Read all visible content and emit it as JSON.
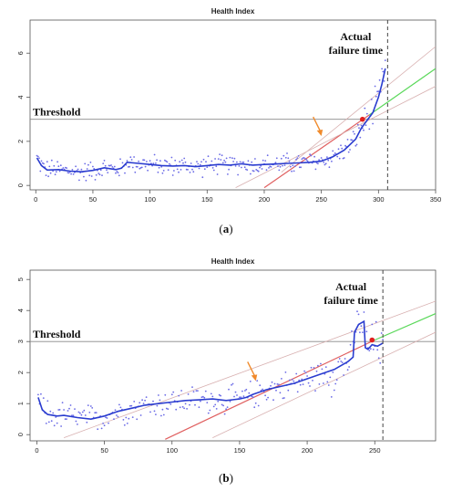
{
  "chart_data": [
    {
      "type": "scatter",
      "panel": "a",
      "caption_letter": "a",
      "title": "Health Index",
      "xlabel": "",
      "ylabel": "",
      "xlim": [
        -5,
        350
      ],
      "ylim": [
        -0.2,
        7.5
      ],
      "x_ticks": [
        0,
        50,
        100,
        150,
        200,
        250,
        300,
        350
      ],
      "y_ticks": [
        0,
        2,
        4,
        6
      ],
      "threshold": {
        "value": 3,
        "label": "Threshold"
      },
      "failure_time": {
        "x": 308,
        "label_line1": "Actual",
        "label_line2": "failure time"
      },
      "prediction_point": {
        "x": 286,
        "y": 3.0
      },
      "series": [
        {
          "role": "smoothed",
          "color": "#2a3ccf",
          "points": [
            [
              1,
              1.25
            ],
            [
              5,
              0.9
            ],
            [
              10,
              0.7
            ],
            [
              20,
              0.72
            ],
            [
              30,
              0.65
            ],
            [
              40,
              0.62
            ],
            [
              50,
              0.68
            ],
            [
              60,
              0.8
            ],
            [
              70,
              0.72
            ],
            [
              75,
              0.78
            ],
            [
              80,
              1.05
            ],
            [
              90,
              1.0
            ],
            [
              100,
              0.95
            ],
            [
              110,
              0.9
            ],
            [
              120,
              0.88
            ],
            [
              130,
              0.9
            ],
            [
              140,
              0.85
            ],
            [
              150,
              0.9
            ],
            [
              160,
              0.95
            ],
            [
              170,
              0.92
            ],
            [
              180,
              0.98
            ],
            [
              190,
              0.92
            ],
            [
              200,
              0.95
            ],
            [
              210,
              0.97
            ],
            [
              220,
              1.0
            ],
            [
              230,
              1.02
            ],
            [
              240,
              1.05
            ],
            [
              250,
              1.1
            ],
            [
              260,
              1.3
            ],
            [
              270,
              1.6
            ],
            [
              280,
              2.1
            ],
            [
              285,
              2.6
            ],
            [
              290,
              2.95
            ],
            [
              295,
              3.3
            ],
            [
              300,
              4.0
            ],
            [
              303,
              4.6
            ],
            [
              306,
              5.3
            ]
          ]
        },
        {
          "role": "regression",
          "color": "#e06060",
          "points": [
            [
              200,
              -0.1
            ],
            [
              292,
              3.2
            ]
          ]
        },
        {
          "role": "extrapolation",
          "color": "#5ad85a",
          "points": [
            [
              292,
              3.2
            ],
            [
              350,
              5.3
            ]
          ]
        },
        {
          "role": "upper-bound",
          "color": "#d8b0b0",
          "points": [
            [
              215,
              0.6
            ],
            [
              350,
              6.3
            ]
          ]
        },
        {
          "role": "lower-bound",
          "color": "#d8b0b0",
          "points": [
            [
              175,
              -0.1
            ],
            [
              350,
              4.5
            ]
          ]
        }
      ]
    },
    {
      "type": "scatter",
      "panel": "b",
      "caption_letter": "b",
      "title": "Health Index",
      "xlabel": "",
      "ylabel": "",
      "xlim": [
        -5,
        295
      ],
      "ylim": [
        -0.2,
        5.3
      ],
      "x_ticks": [
        0,
        50,
        100,
        150,
        200,
        250
      ],
      "y_ticks": [
        0,
        1,
        2,
        3,
        4,
        5
      ],
      "threshold": {
        "value": 3,
        "label": "Threshold"
      },
      "failure_time": {
        "x": 256,
        "label_line1": "Actual",
        "label_line2": "failure time"
      },
      "prediction_point": {
        "x": 248,
        "y": 3.05
      },
      "series": [
        {
          "role": "smoothed",
          "color": "#2a3ccf",
          "points": [
            [
              1,
              1.2
            ],
            [
              4,
              0.8
            ],
            [
              8,
              0.65
            ],
            [
              15,
              0.6
            ],
            [
              20,
              0.62
            ],
            [
              30,
              0.55
            ],
            [
              40,
              0.5
            ],
            [
              50,
              0.6
            ],
            [
              60,
              0.75
            ],
            [
              70,
              0.85
            ],
            [
              80,
              0.95
            ],
            [
              90,
              1.0
            ],
            [
              100,
              1.05
            ],
            [
              110,
              1.1
            ],
            [
              120,
              1.12
            ],
            [
              130,
              1.15
            ],
            [
              140,
              1.1
            ],
            [
              150,
              1.15
            ],
            [
              155,
              1.2
            ],
            [
              160,
              1.3
            ],
            [
              170,
              1.45
            ],
            [
              180,
              1.55
            ],
            [
              190,
              1.65
            ],
            [
              200,
              1.8
            ],
            [
              210,
              1.95
            ],
            [
              220,
              2.1
            ],
            [
              230,
              2.35
            ],
            [
              234,
              2.5
            ],
            [
              235,
              3.3
            ],
            [
              238,
              3.55
            ],
            [
              240,
              3.6
            ],
            [
              242,
              3.65
            ],
            [
              243,
              2.8
            ],
            [
              245,
              2.75
            ],
            [
              248,
              2.9
            ],
            [
              252,
              2.85
            ],
            [
              256,
              2.95
            ]
          ]
        },
        {
          "role": "regression",
          "color": "#e06060",
          "points": [
            [
              95,
              -0.15
            ],
            [
              250,
              3.05
            ]
          ]
        },
        {
          "role": "extrapolation",
          "color": "#5ad85a",
          "points": [
            [
              250,
              3.05
            ],
            [
              295,
              3.9
            ]
          ]
        },
        {
          "role": "upper-bound",
          "color": "#d8b0b0",
          "points": [
            [
              20,
              -0.1
            ],
            [
              295,
              4.3
            ]
          ]
        },
        {
          "role": "lower-bound",
          "color": "#d8b0b0",
          "points": [
            [
              130,
              -0.1
            ],
            [
              295,
              3.3
            ]
          ]
        }
      ]
    }
  ]
}
